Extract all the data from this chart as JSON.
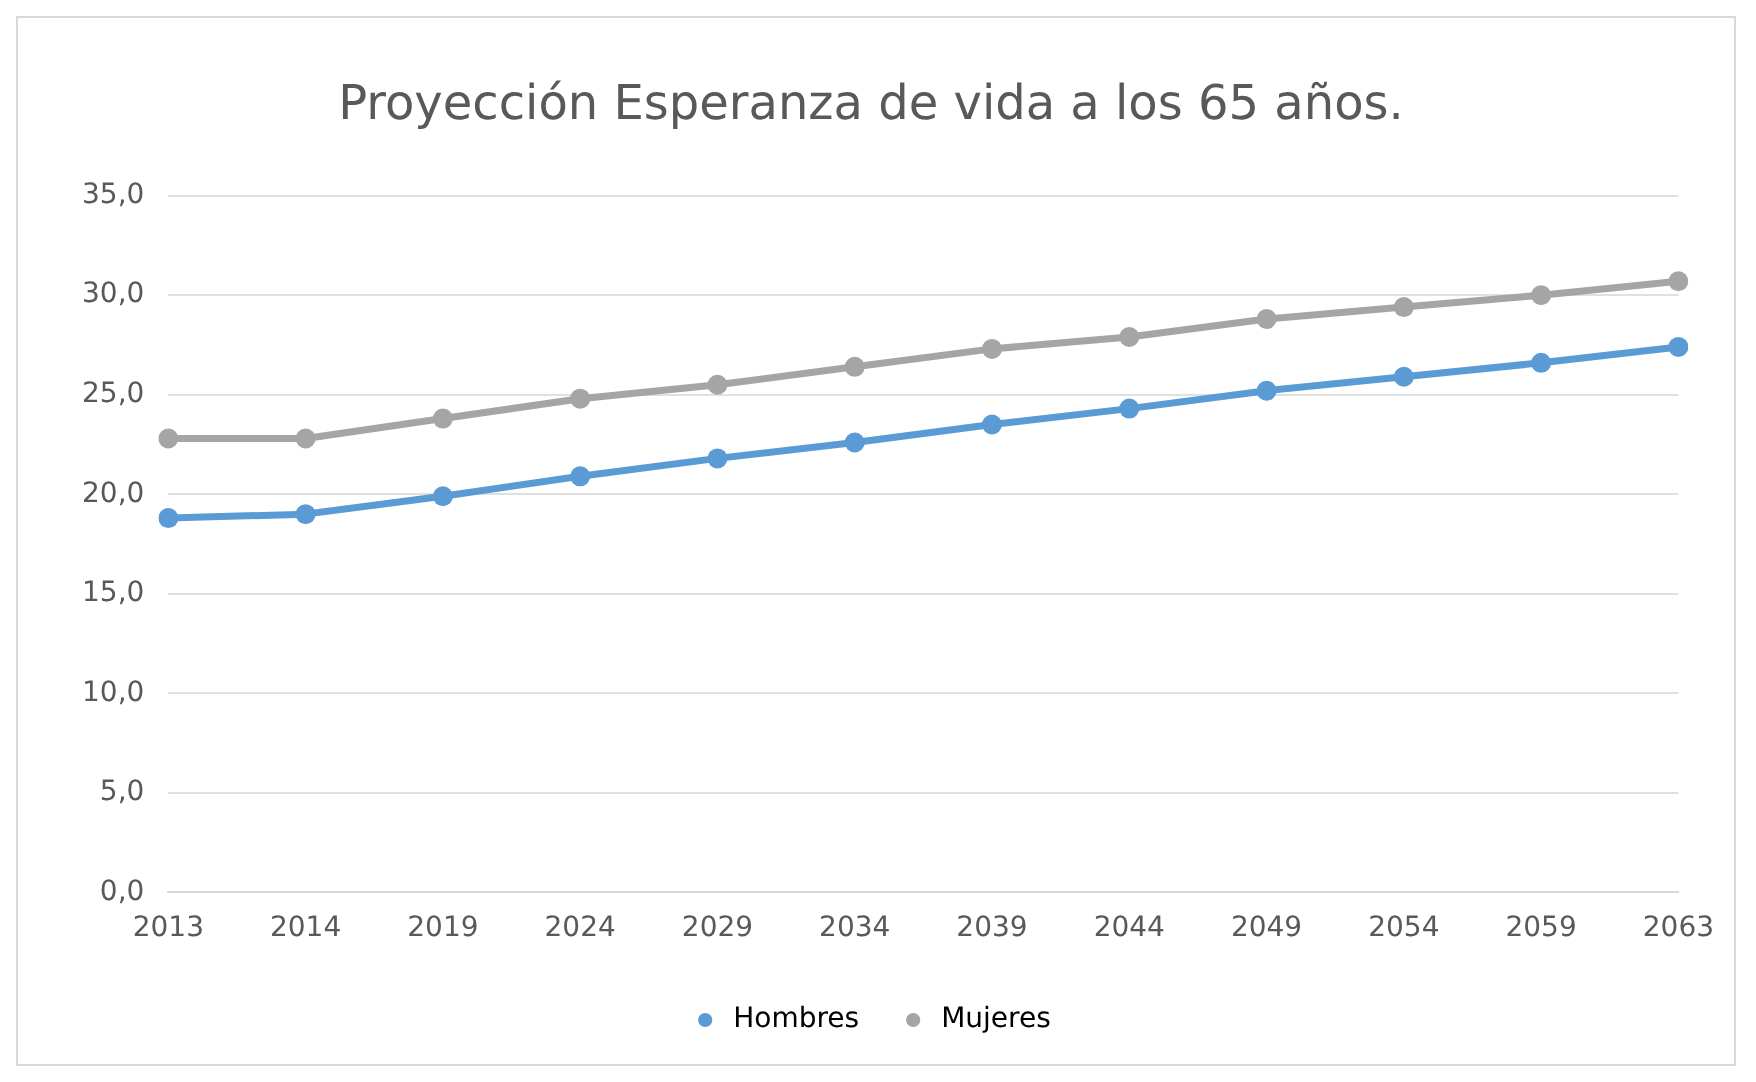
{
  "chart_data": {
    "type": "line",
    "title": "Proyección Esperanza de vida a los 65 años.",
    "categories": [
      "2013",
      "2014",
      "2019",
      "2024",
      "2029",
      "2034",
      "2039",
      "2044",
      "2049",
      "2054",
      "2059",
      "2063"
    ],
    "series": [
      {
        "name": "Hombres",
        "color": "#5b9bd5",
        "values": [
          18.8,
          19.0,
          19.9,
          20.9,
          21.8,
          22.6,
          23.5,
          24.3,
          25.2,
          25.9,
          26.6,
          27.4
        ]
      },
      {
        "name": "Mujeres",
        "color": "#a5a5a5",
        "values": [
          22.8,
          22.8,
          23.8,
          24.8,
          25.5,
          26.4,
          27.3,
          27.9,
          28.8,
          29.4,
          30.0,
          30.7
        ]
      }
    ],
    "ylim": [
      0,
      35
    ],
    "yticks": [
      {
        "value": 0,
        "label": "0,0"
      },
      {
        "value": 5,
        "label": "5,0"
      },
      {
        "value": 10,
        "label": "10,0"
      },
      {
        "value": 15,
        "label": "15,0"
      },
      {
        "value": 20,
        "label": "20,0"
      },
      {
        "value": 25,
        "label": "25,0"
      },
      {
        "value": 30,
        "label": "30,0"
      },
      {
        "value": 35,
        "label": "35,0"
      }
    ],
    "grid": "y",
    "legend": "bottom",
    "marker": "circle",
    "line_style": "solid"
  }
}
